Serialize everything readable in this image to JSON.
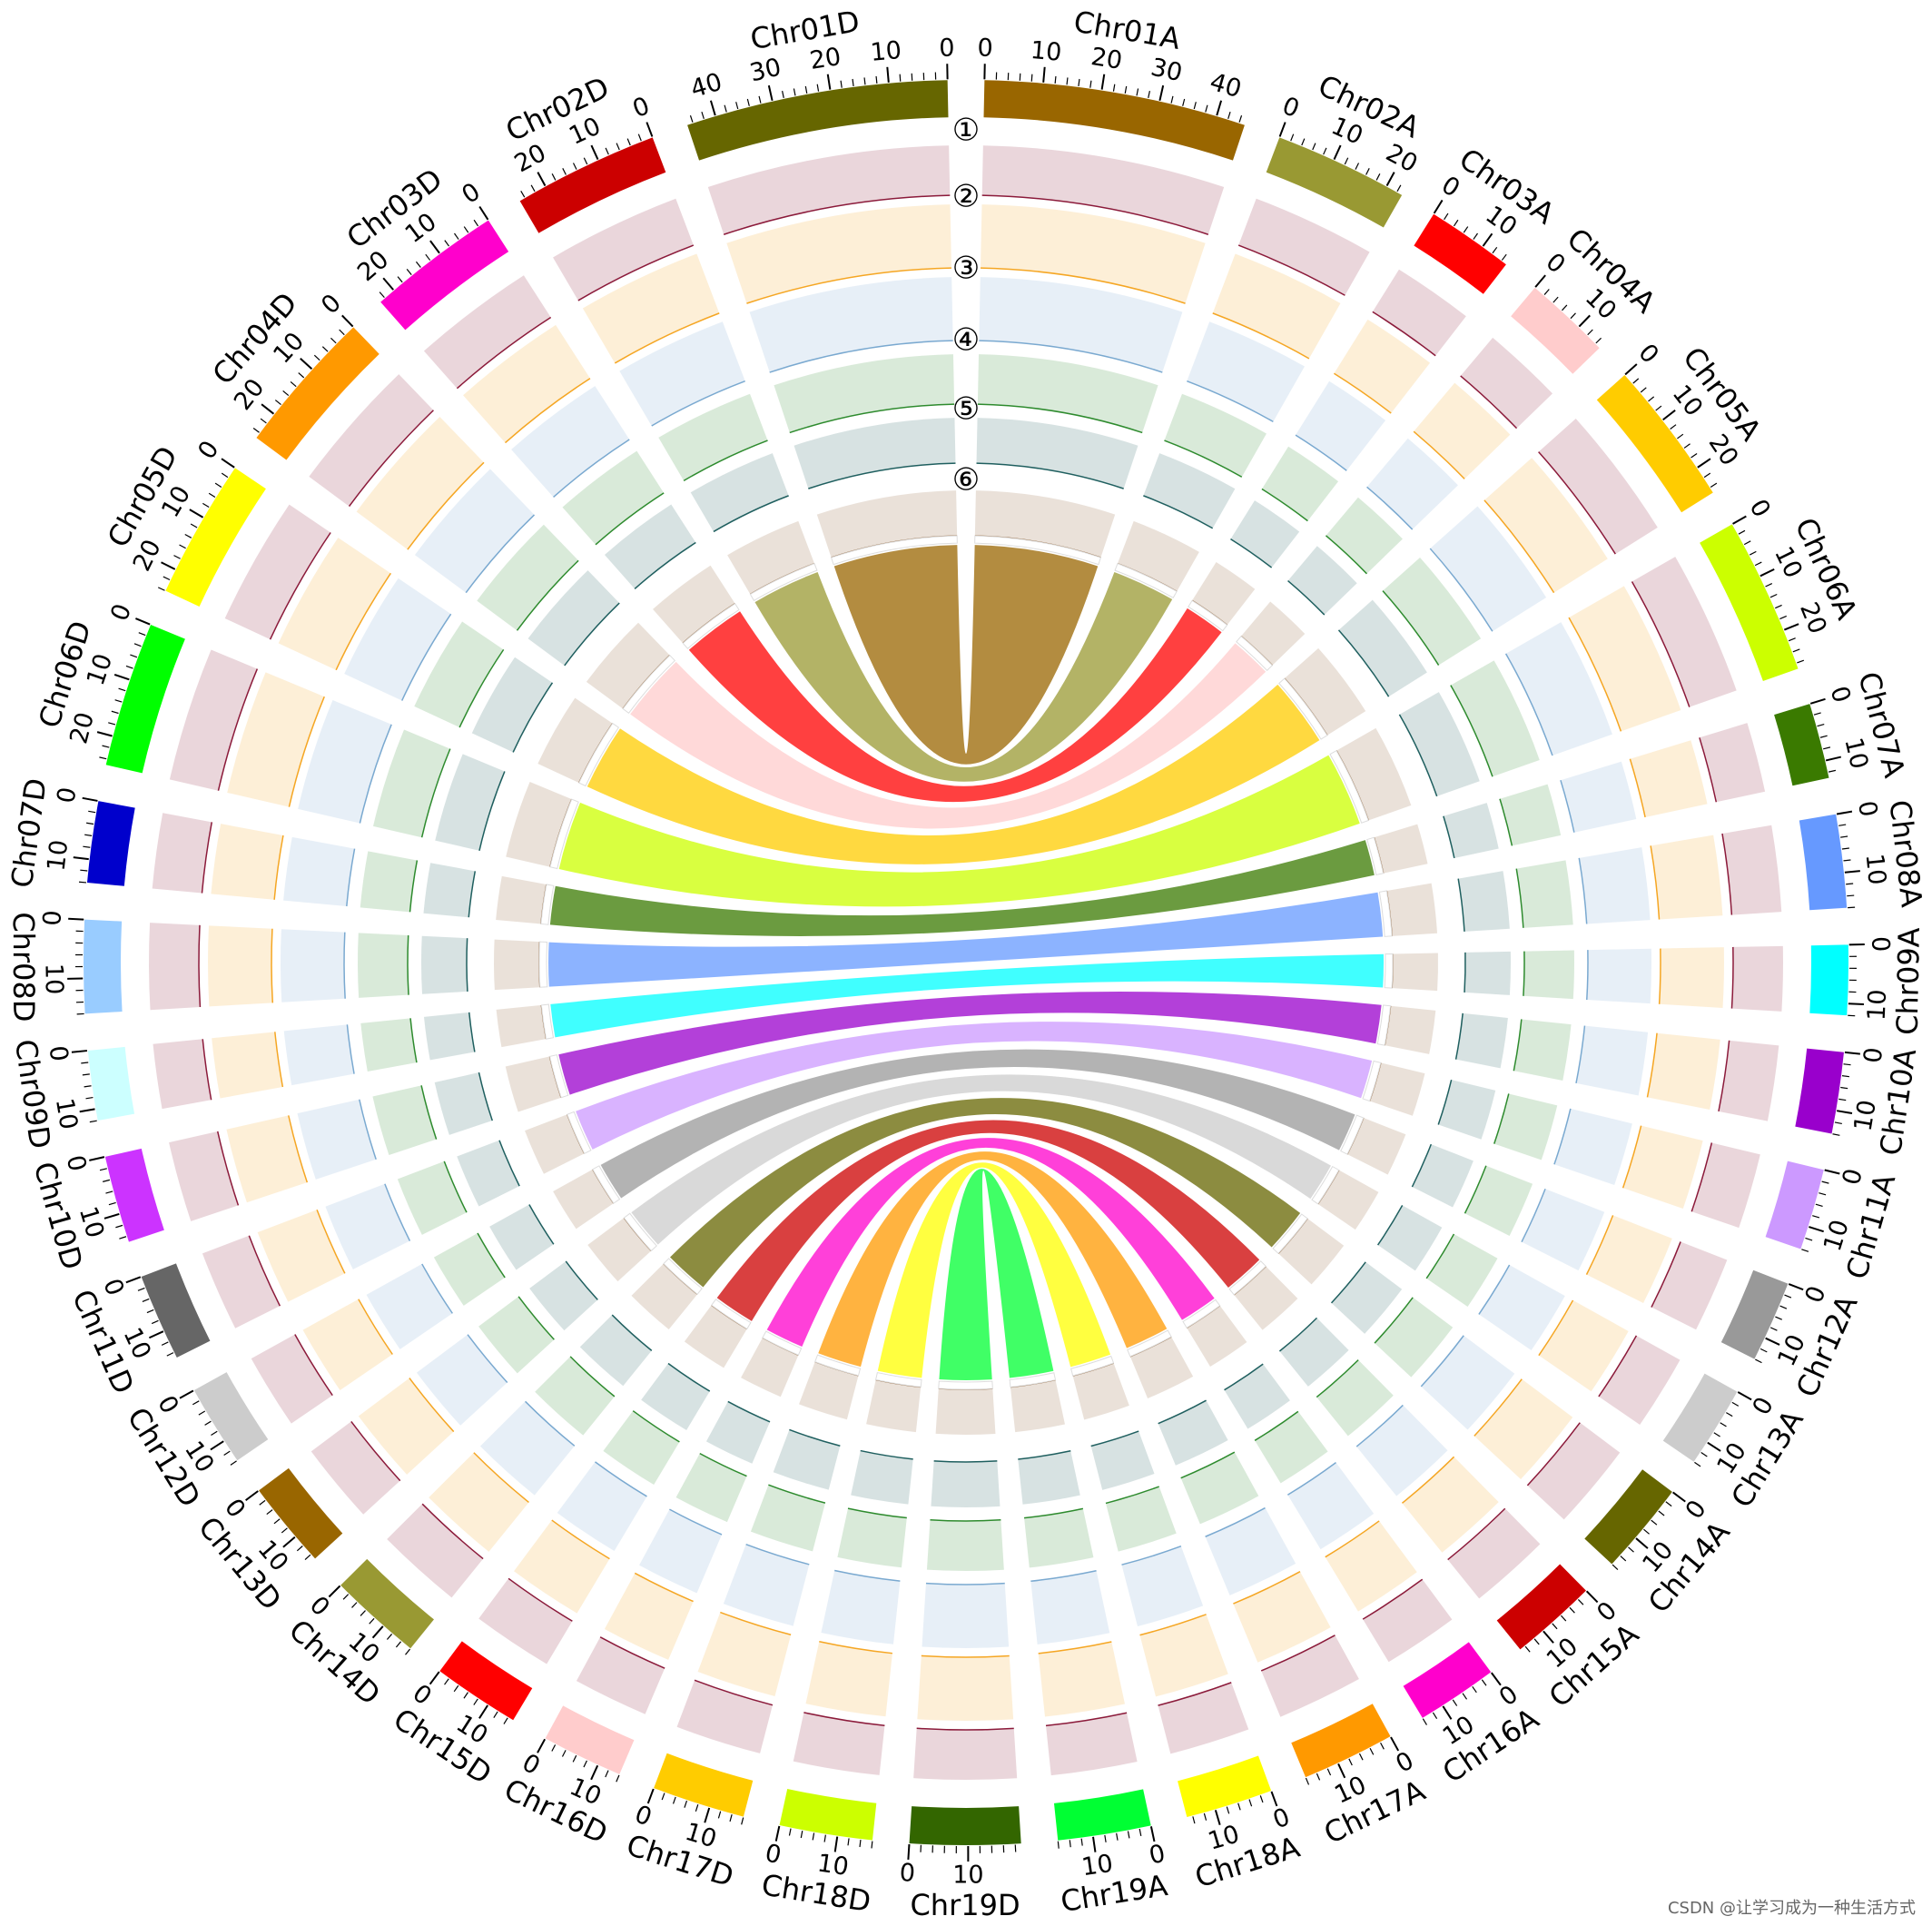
{
  "chart_data": {
    "type": "circos",
    "chromosomes": [
      {
        "name": "Chr01A",
        "color": "#996600",
        "length": 45,
        "ticks": [
          0,
          10,
          20,
          30,
          40
        ]
      },
      {
        "name": "Chr02A",
        "color": "#999933",
        "length": 23,
        "ticks": [
          0,
          10,
          20
        ]
      },
      {
        "name": "Chr03A",
        "color": "#ff0000",
        "length": 15,
        "ticks": [
          0,
          10
        ]
      },
      {
        "name": "Chr04A",
        "color": "#ffcccc",
        "length": 15,
        "ticks": [
          0,
          10
        ]
      },
      {
        "name": "Chr05A",
        "color": "#ffcc00",
        "length": 25,
        "ticks": [
          0,
          10,
          20
        ]
      },
      {
        "name": "Chr06A",
        "color": "#ccff00",
        "length": 27,
        "ticks": [
          0,
          10,
          20
        ]
      },
      {
        "name": "Chr07A",
        "color": "#3a7a00",
        "length": 13,
        "ticks": [
          0,
          10
        ]
      },
      {
        "name": "Chr08A",
        "color": "#6699ff",
        "length": 16,
        "ticks": [
          0,
          10
        ]
      },
      {
        "name": "Chr09A",
        "color": "#00ffff",
        "length": 12,
        "ticks": [
          0,
          10
        ]
      },
      {
        "name": "Chr10A",
        "color": "#9900cc",
        "length": 14,
        "ticks": [
          0,
          10
        ]
      },
      {
        "name": "Chr11A",
        "color": "#cc99ff",
        "length": 14,
        "ticks": [
          0,
          10
        ]
      },
      {
        "name": "Chr12A",
        "color": "#999999",
        "length": 14,
        "ticks": [
          0,
          10
        ]
      },
      {
        "name": "Chr13A",
        "color": "#cccccc",
        "length": 14,
        "ticks": [
          0,
          10
        ]
      },
      {
        "name": "Chr14A",
        "color": "#666600",
        "length": 16,
        "ticks": [
          0,
          10
        ]
      },
      {
        "name": "Chr15A",
        "color": "#cc0000",
        "length": 15,
        "ticks": [
          0,
          10
        ]
      },
      {
        "name": "Chr16A",
        "color": "#ff00cc",
        "length": 14,
        "ticks": [
          0,
          10
        ]
      },
      {
        "name": "Chr17A",
        "color": "#ff9900",
        "length": 16,
        "ticks": [
          0,
          10
        ]
      },
      {
        "name": "Chr18A",
        "color": "#ffff00",
        "length": 15,
        "ticks": [
          0,
          10
        ]
      },
      {
        "name": "Chr19A",
        "color": "#00ff33",
        "length": 16,
        "ticks": [
          0,
          10
        ]
      },
      {
        "name": "Chr01D",
        "color": "#666600",
        "length": 45,
        "ticks": [
          0,
          10,
          20,
          30,
          40
        ]
      },
      {
        "name": "Chr02D",
        "color": "#cc0000",
        "length": 25,
        "ticks": [
          0,
          10,
          20
        ]
      },
      {
        "name": "Chr03D",
        "color": "#ff00cc",
        "length": 23,
        "ticks": [
          0,
          10,
          20
        ]
      },
      {
        "name": "Chr04D",
        "color": "#ff9900",
        "length": 25,
        "ticks": [
          0,
          10,
          20
        ]
      },
      {
        "name": "Chr05D",
        "color": "#ffff00",
        "length": 24,
        "ticks": [
          0,
          10,
          20
        ]
      },
      {
        "name": "Chr06D",
        "color": "#00ff00",
        "length": 25,
        "ticks": [
          0,
          10,
          20
        ]
      },
      {
        "name": "Chr07D",
        "color": "#0000cc",
        "length": 14,
        "ticks": [
          0,
          10
        ]
      },
      {
        "name": "Chr08D",
        "color": "#99ccff",
        "length": 16,
        "ticks": [
          0,
          10
        ]
      },
      {
        "name": "Chr09D",
        "color": "#ccffff",
        "length": 12,
        "ticks": [
          0,
          10
        ]
      },
      {
        "name": "Chr10D",
        "color": "#cc33ff",
        "length": 15,
        "ticks": [
          0,
          10
        ]
      },
      {
        "name": "Chr11D",
        "color": "#666666",
        "length": 15,
        "ticks": [
          0,
          10
        ]
      },
      {
        "name": "Chr12D",
        "color": "#cccccc",
        "length": 14,
        "ticks": [
          0,
          10
        ]
      },
      {
        "name": "Chr13D",
        "color": "#996600",
        "length": 15,
        "ticks": [
          0,
          10
        ]
      },
      {
        "name": "Chr14D",
        "color": "#999933",
        "length": 16,
        "ticks": [
          0,
          10
        ]
      },
      {
        "name": "Chr15D",
        "color": "#ff0000",
        "length": 15,
        "ticks": [
          0,
          10
        ]
      },
      {
        "name": "Chr16D",
        "color": "#ffcccc",
        "length": 14,
        "ticks": [
          0,
          10
        ]
      },
      {
        "name": "Chr17D",
        "color": "#ffcc00",
        "length": 16,
        "ticks": [
          0,
          10
        ]
      },
      {
        "name": "Chr18D",
        "color": "#ccff00",
        "length": 16,
        "ticks": [
          0,
          10
        ]
      },
      {
        "name": "Chr19D",
        "color": "#336600",
        "length": 19,
        "ticks": [
          0,
          10
        ]
      }
    ],
    "tracks": [
      {
        "label": "①",
        "color": "#8b1a3a"
      },
      {
        "label": "②",
        "color": "#f5a623"
      },
      {
        "label": "③",
        "color": "#7aa9d0"
      },
      {
        "label": "④",
        "color": "#2e8b2e"
      },
      {
        "label": "⑤",
        "color": "#1f5f5f"
      },
      {
        "label": "⑥",
        "color": "#8b5a2b"
      }
    ],
    "watermark": "CSDN @让学习成为一种生活方式"
  }
}
